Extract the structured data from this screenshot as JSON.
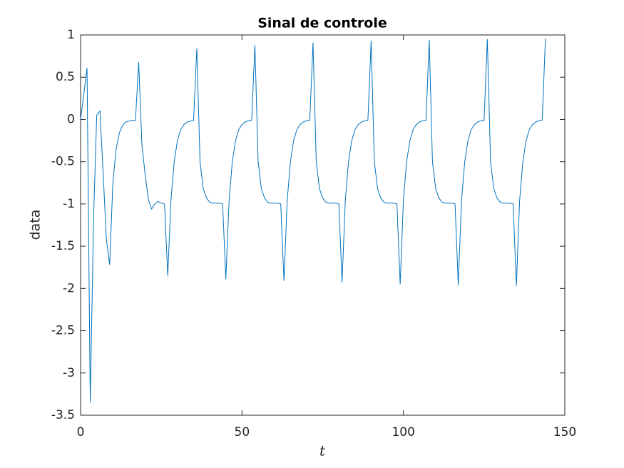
{
  "chart_data": {
    "type": "line",
    "title": "Sinal de controle",
    "xlabel": "t",
    "ylabel": "data",
    "x": [
      0,
      1,
      2,
      3,
      4,
      5,
      6,
      7,
      8,
      9,
      10,
      11,
      12,
      13,
      14,
      15,
      16,
      17,
      18,
      19,
      20,
      21,
      22,
      23,
      24,
      25,
      26,
      27,
      28,
      29,
      30,
      31,
      32,
      33,
      34,
      35,
      36,
      37,
      38,
      39,
      40,
      41,
      42,
      43,
      44,
      45,
      46,
      47,
      48,
      49,
      50,
      51,
      52,
      53,
      54,
      55,
      56,
      57,
      58,
      59,
      60,
      61,
      62,
      63,
      64,
      65,
      66,
      67,
      68,
      69,
      70,
      71,
      72,
      73,
      74,
      75,
      76,
      77,
      78,
      79,
      80,
      81,
      82,
      83,
      84,
      85,
      86,
      87,
      88,
      89,
      90,
      91,
      92,
      93,
      94,
      95,
      96,
      97,
      98,
      99,
      100,
      101,
      102,
      103,
      104,
      105,
      106,
      107,
      108,
      109,
      110,
      111,
      112,
      113,
      114,
      115,
      116,
      117,
      118,
      119,
      120,
      121,
      122,
      123,
      124,
      125,
      126,
      127,
      128,
      129,
      130,
      131,
      132,
      133,
      134,
      135,
      136,
      137,
      138,
      139,
      140,
      141,
      142,
      143,
      144
    ],
    "series": [
      {
        "name": "data",
        "color": "#0072bd",
        "values": [
          0,
          0.3,
          0.61,
          -3.35,
          -1.2,
          0.05,
          0.1,
          -0.65,
          -1.42,
          -1.72,
          -0.75,
          -0.35,
          -0.16,
          -0.07,
          -0.03,
          -0.02,
          -0.01,
          -0.01,
          0.68,
          -0.3,
          -0.65,
          -0.95,
          -1.06,
          -1.0,
          -0.97,
          -0.99,
          -1.0,
          -1.85,
          -0.95,
          -0.5,
          -0.25,
          -0.12,
          -0.06,
          -0.03,
          -0.02,
          -0.01,
          0.84,
          -0.5,
          -0.82,
          -0.93,
          -0.98,
          -0.99,
          -0.99,
          -0.99,
          -1.0,
          -1.89,
          -0.96,
          -0.5,
          -0.25,
          -0.12,
          -0.06,
          -0.03,
          -0.015,
          -0.01,
          0.88,
          -0.5,
          -0.82,
          -0.93,
          -0.98,
          -0.99,
          -0.99,
          -0.99,
          -1.0,
          -1.91,
          -0.96,
          -0.5,
          -0.25,
          -0.12,
          -0.06,
          -0.03,
          -0.015,
          -0.01,
          0.91,
          -0.5,
          -0.82,
          -0.93,
          -0.98,
          -0.99,
          -0.99,
          -0.99,
          -1.0,
          -1.93,
          -0.96,
          -0.5,
          -0.25,
          -0.12,
          -0.06,
          -0.03,
          -0.015,
          -0.01,
          0.93,
          -0.5,
          -0.82,
          -0.93,
          -0.98,
          -0.99,
          -0.99,
          -0.99,
          -1.0,
          -1.95,
          -0.96,
          -0.5,
          -0.25,
          -0.12,
          -0.06,
          -0.03,
          -0.015,
          -0.01,
          0.94,
          -0.5,
          -0.82,
          -0.93,
          -0.98,
          -0.99,
          -0.99,
          -0.99,
          -1.0,
          -1.96,
          -0.96,
          -0.5,
          -0.25,
          -0.12,
          -0.06,
          -0.03,
          -0.015,
          -0.01,
          0.95,
          -0.5,
          -0.82,
          -0.93,
          -0.98,
          -0.99,
          -0.99,
          -0.99,
          -1.0,
          -1.97,
          -0.96,
          -0.5,
          -0.25,
          -0.12,
          -0.06,
          -0.03,
          -0.015,
          -0.01,
          0.96
        ]
      }
    ],
    "xlim": [
      0,
      150
    ],
    "xticks": [
      0,
      50,
      100,
      150
    ],
    "ylim": [
      -3.5,
      1
    ],
    "yticks": [
      -3.5,
      -3,
      -2.5,
      -2,
      -1.5,
      -1,
      -0.5,
      0,
      0.5,
      1
    ]
  }
}
